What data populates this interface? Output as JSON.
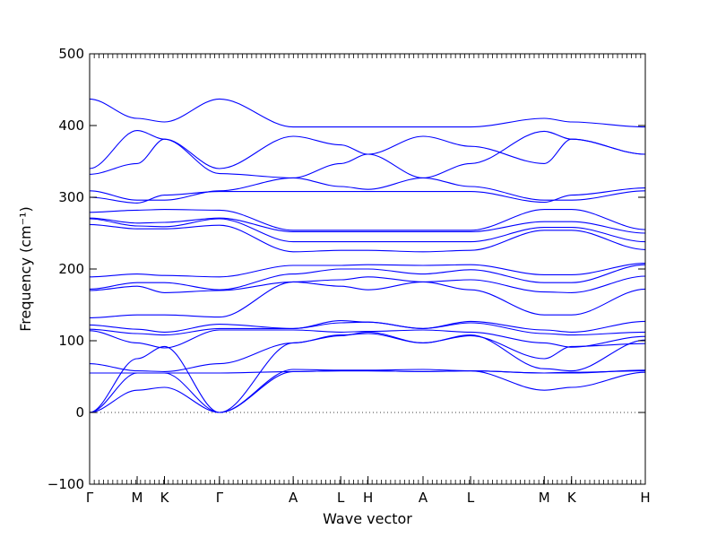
{
  "chart_data": {
    "type": "line",
    "xlabel": "Wave vector",
    "ylabel": "Frequency (cm⁻¹)",
    "ylim": [
      -100,
      500
    ],
    "yticks": [
      -100,
      0,
      100,
      200,
      300,
      400,
      500
    ],
    "xlim": [
      0,
      14.85
    ],
    "xticks": [
      {
        "label": "Γ",
        "x": 0
      },
      {
        "label": "M",
        "x": 1.27
      },
      {
        "label": "K",
        "x": 2.0
      },
      {
        "label": "Γ",
        "x": 3.47
      },
      {
        "label": "A",
        "x": 5.44
      },
      {
        "label": "L",
        "x": 6.71
      },
      {
        "label": "H",
        "x": 7.44
      },
      {
        "label": "A",
        "x": 8.91
      },
      {
        "label": "L",
        "x": 10.18
      },
      {
        "label": "M",
        "x": 12.15
      },
      {
        "label": "K",
        "x": 12.88
      },
      {
        "label": "H",
        "x": 14.85
      }
    ],
    "zero_line": true,
    "line_color": "#0000ff",
    "series": [
      {
        "x": [
          0,
          1.27,
          2.0,
          3.47,
          5.44,
          6.71,
          7.44,
          8.91,
          10.18,
          12.15,
          12.88,
          14.85
        ],
        "values": [
          0,
          31,
          35,
          0,
          57,
          58,
          58,
          57,
          58,
          31,
          35,
          56
        ]
      },
      {
        "x": [
          0,
          1.27,
          2.0,
          3.47,
          5.44,
          6.71,
          7.44,
          8.91,
          10.18,
          12.15,
          12.88,
          14.85
        ],
        "values": [
          0,
          55,
          55,
          0,
          60,
          59,
          59,
          60,
          58,
          55,
          56,
          58
        ]
      },
      {
        "x": [
          0,
          1.27,
          2.0,
          3.47,
          5.44,
          6.71,
          7.44,
          8.91,
          10.18,
          12.15,
          12.88,
          14.85
        ],
        "values": [
          0,
          75,
          92,
          0,
          97,
          107,
          112,
          97,
          107,
          75,
          92,
          96
        ]
      },
      {
        "x": [
          0,
          1.27,
          2.0,
          3.47,
          5.44,
          6.71,
          7.44,
          8.91,
          10.18,
          12.15,
          12.88,
          14.85
        ],
        "values": [
          55,
          55,
          55,
          55,
          57,
          58,
          58,
          57,
          58,
          55,
          55,
          59
        ]
      },
      {
        "x": [
          0,
          1.27,
          2.0,
          3.47,
          5.44,
          6.71,
          7.44,
          8.91,
          10.18,
          12.15,
          12.88,
          14.85
        ],
        "values": [
          68,
          58,
          57,
          68,
          97,
          108,
          110,
          97,
          108,
          61,
          58,
          101
        ]
      },
      {
        "x": [
          0,
          1.27,
          2.0,
          3.47,
          5.44,
          6.71,
          7.44,
          8.91,
          10.18,
          12.15,
          12.88,
          14.85
        ],
        "values": [
          114,
          97,
          90,
          115,
          115,
          112,
          113,
          115,
          112,
          97,
          91,
          106
        ]
      },
      {
        "x": [
          0,
          1.27,
          2.0,
          3.47,
          5.44,
          6.71,
          7.44,
          8.91,
          10.18,
          12.15,
          12.88,
          14.85
        ],
        "values": [
          116,
          110,
          108,
          117,
          117,
          125,
          126,
          117,
          125,
          110,
          108,
          112
        ]
      },
      {
        "x": [
          0,
          1.27,
          2.0,
          3.47,
          5.44,
          6.71,
          7.44,
          8.91,
          10.18,
          12.15,
          12.88,
          14.85
        ],
        "values": [
          122,
          116,
          112,
          123,
          117,
          128,
          126,
          117,
          127,
          115,
          112,
          127
        ]
      },
      {
        "x": [
          0,
          1.27,
          2.0,
          3.47,
          5.44,
          6.71,
          7.44,
          8.91,
          10.18,
          12.15,
          12.88,
          14.85
        ],
        "values": [
          132,
          136,
          136,
          133,
          182,
          176,
          171,
          182,
          171,
          136,
          136,
          172
        ]
      },
      {
        "x": [
          0,
          1.27,
          2.0,
          3.47,
          5.44,
          6.71,
          7.44,
          8.91,
          10.18,
          12.15,
          12.88,
          14.85
        ],
        "values": [
          170,
          176,
          167,
          170,
          182,
          185,
          189,
          182,
          185,
          168,
          167,
          190
        ]
      },
      {
        "x": [
          0,
          1.27,
          2.0,
          3.47,
          5.44,
          6.71,
          7.44,
          8.91,
          10.18,
          12.15,
          12.88,
          14.85
        ],
        "values": [
          172,
          181,
          181,
          171,
          193,
          200,
          200,
          193,
          199,
          181,
          181,
          206
        ]
      },
      {
        "x": [
          0,
          1.27,
          2.0,
          3.47,
          5.44,
          6.71,
          7.44,
          8.91,
          10.18,
          12.15,
          12.88,
          14.85
        ],
        "values": [
          189,
          193,
          191,
          189,
          205,
          205,
          206,
          205,
          206,
          192,
          192,
          208
        ]
      },
      {
        "x": [
          0,
          1.27,
          2.0,
          3.47,
          5.44,
          6.71,
          7.44,
          8.91,
          10.18,
          12.15,
          12.88,
          14.85
        ],
        "values": [
          262,
          256,
          256,
          261,
          224,
          226,
          226,
          224,
          226,
          254,
          254,
          227
        ]
      },
      {
        "x": [
          0,
          1.27,
          2.0,
          3.47,
          5.44,
          6.71,
          7.44,
          8.91,
          10.18,
          12.15,
          12.88,
          14.85
        ],
        "values": [
          270,
          260,
          259,
          270,
          238,
          238,
          238,
          238,
          238,
          258,
          258,
          238
        ]
      },
      {
        "x": [
          0,
          1.27,
          2.0,
          3.47,
          5.44,
          6.71,
          7.44,
          8.91,
          10.18,
          12.15,
          12.88,
          14.85
        ],
        "values": [
          271,
          264,
          265,
          271,
          252,
          252,
          252,
          252,
          252,
          266,
          266,
          250
        ]
      },
      {
        "x": [
          0,
          1.27,
          2.0,
          3.47,
          5.44,
          6.71,
          7.44,
          8.91,
          10.18,
          12.15,
          12.88,
          14.85
        ],
        "values": [
          279,
          282,
          283,
          282,
          254,
          254,
          254,
          254,
          254,
          283,
          283,
          255
        ]
      },
      {
        "x": [
          0,
          1.27,
          2.0,
          3.47,
          5.44,
          6.71,
          7.44,
          8.91,
          10.18,
          12.15,
          12.88,
          14.85
        ],
        "values": [
          300,
          292,
          303,
          308,
          308,
          308,
          308,
          308,
          308,
          293,
          303,
          313
        ]
      },
      {
        "x": [
          0,
          1.27,
          2.0,
          3.47,
          5.44,
          6.71,
          7.44,
          8.91,
          10.18,
          12.15,
          12.88,
          14.85
        ],
        "values": [
          309,
          296,
          296,
          309,
          327,
          315,
          311,
          327,
          315,
          296,
          296,
          309
        ]
      },
      {
        "x": [
          0,
          1.27,
          2.0,
          3.47,
          5.44,
          6.71,
          7.44,
          8.91,
          10.18,
          12.15,
          12.88,
          14.85
        ],
        "values": [
          332,
          347,
          381,
          340,
          385,
          373,
          360,
          385,
          371,
          347,
          381,
          360
        ]
      },
      {
        "x": [
          0,
          1.27,
          2.0,
          3.47,
          5.44,
          6.71,
          7.44,
          8.91,
          10.18,
          12.15,
          12.88,
          14.85
        ],
        "values": [
          340,
          393,
          381,
          333,
          327,
          347,
          360,
          327,
          347,
          392,
          381,
          360
        ]
      },
      {
        "x": [
          0,
          1.27,
          2.0,
          3.47,
          5.44,
          6.71,
          7.44,
          8.91,
          10.18,
          12.15,
          12.88,
          14.85
        ],
        "values": [
          437,
          410,
          405,
          437,
          398,
          398,
          398,
          398,
          398,
          410,
          405,
          398
        ]
      }
    ]
  }
}
